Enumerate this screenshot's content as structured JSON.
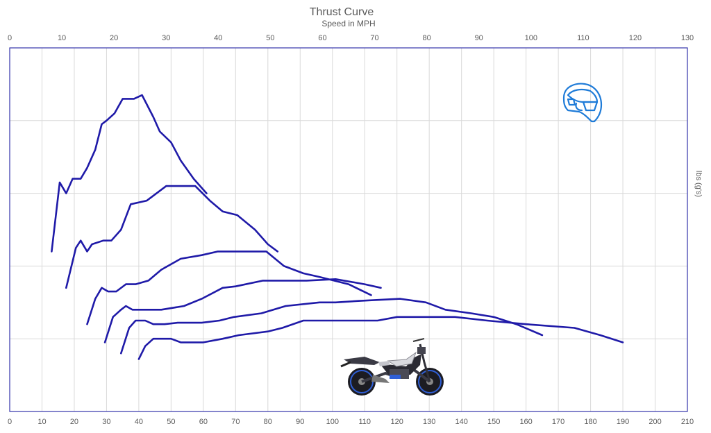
{
  "chart_data": {
    "type": "line",
    "title": "Thrust Curve",
    "subtitle": "Speed in MPH",
    "ylabel": "lbs (g's)",
    "grid": true,
    "x_top": {
      "label": "Speed in MPH",
      "range": [
        0,
        130
      ],
      "ticks": [
        "0",
        "10",
        "20",
        "30",
        "40",
        "50",
        "60",
        "70",
        "80",
        "90",
        "100",
        "110",
        "120",
        "130"
      ]
    },
    "x_bottom": {
      "range": [
        0,
        210
      ],
      "ticks": [
        "0",
        "10",
        "20",
        "30",
        "40",
        "50",
        "60",
        "70",
        "80",
        "90",
        "100",
        "110",
        "120",
        "130",
        "140",
        "150",
        "160",
        "170",
        "180",
        "190",
        "200",
        "210"
      ]
    },
    "ylim": [
      0,
      5
    ],
    "colors": {
      "line": "#1f1aa8",
      "grid": "#d9d9d9",
      "frame": "#3333aa",
      "helmet": "#1e7bd8"
    },
    "series": [
      {
        "x": [
          13,
          15.5,
          17.5,
          19.5,
          22,
          24,
          26.5,
          28.5,
          30,
          32.5,
          35,
          38.5,
          41,
          44.5,
          46.5,
          50,
          53,
          57,
          61
        ],
        "y": [
          2.2,
          3.15,
          3.0,
          3.2,
          3.2,
          3.35,
          3.6,
          3.95,
          4.0,
          4.1,
          4.3,
          4.3,
          4.35,
          4.05,
          3.85,
          3.7,
          3.45,
          3.2,
          3.0
        ]
      },
      {
        "x": [
          17.5,
          20.5,
          22,
          24,
          25.5,
          29,
          31.5,
          34.5,
          37.5,
          42.5,
          48.5,
          53.5,
          57.5,
          62,
          66,
          70.5,
          76,
          80,
          83
        ],
        "y": [
          1.7,
          2.25,
          2.35,
          2.2,
          2.3,
          2.35,
          2.35,
          2.5,
          2.85,
          2.9,
          3.1,
          3.1,
          3.1,
          2.9,
          2.75,
          2.7,
          2.5,
          2.3,
          2.2
        ]
      },
      {
        "x": [
          24,
          26.5,
          28.5,
          30.5,
          33,
          36,
          39,
          43,
          47,
          53,
          59.5,
          64.5,
          70,
          75,
          79.5,
          85,
          91,
          96,
          105,
          112
        ],
        "y": [
          1.2,
          1.55,
          1.7,
          1.65,
          1.65,
          1.75,
          1.75,
          1.8,
          1.95,
          2.1,
          2.15,
          2.2,
          2.2,
          2.2,
          2.2,
          2.0,
          1.9,
          1.85,
          1.75,
          1.6
        ]
      },
      {
        "x": [
          29.5,
          32,
          34.5,
          36,
          38,
          41,
          47,
          54,
          59.5,
          66,
          70,
          78.5,
          86,
          92,
          101,
          110,
          115
        ],
        "y": [
          0.95,
          1.3,
          1.4,
          1.45,
          1.4,
          1.4,
          1.4,
          1.45,
          1.55,
          1.7,
          1.72,
          1.8,
          1.8,
          1.8,
          1.82,
          1.75,
          1.7
        ]
      },
      {
        "x": [
          34.5,
          37,
          39,
          42,
          44.5,
          48,
          52,
          59.5,
          65,
          69.5,
          78,
          85.5,
          96,
          101,
          108,
          121,
          129,
          135,
          143,
          150,
          157,
          165
        ],
        "y": [
          0.8,
          1.15,
          1.25,
          1.25,
          1.2,
          1.2,
          1.22,
          1.22,
          1.25,
          1.3,
          1.35,
          1.45,
          1.5,
          1.5,
          1.52,
          1.55,
          1.5,
          1.4,
          1.35,
          1.3,
          1.2,
          1.05
        ]
      },
      {
        "x": [
          40,
          42,
          44.5,
          47,
          50,
          53,
          60,
          66,
          71,
          80,
          84.5,
          91,
          97,
          106,
          114,
          120,
          128,
          138,
          148,
          160,
          175,
          183,
          190
        ],
        "y": [
          0.72,
          0.9,
          1.0,
          1.0,
          1.0,
          0.95,
          0.95,
          1.0,
          1.05,
          1.1,
          1.15,
          1.25,
          1.25,
          1.25,
          1.25,
          1.3,
          1.3,
          1.3,
          1.25,
          1.2,
          1.15,
          1.05,
          0.95
        ]
      }
    ]
  },
  "decorations": {
    "helmet_icon": "motorcycle-helmet-icon",
    "motorcycle_image": "naked-motorcycle-image"
  }
}
